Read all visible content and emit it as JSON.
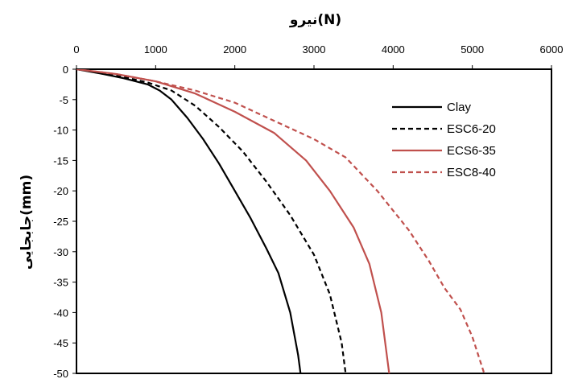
{
  "chart_data": {
    "type": "line",
    "title": "نیرو(N)",
    "xlabel": "",
    "ylabel": "جابجایی(mm)",
    "xlim": [
      0,
      6000
    ],
    "ylim": [
      -50,
      0
    ],
    "x_axis_position": "top",
    "grid": false,
    "legend_position": "right",
    "x_ticks": [
      "0",
      "1000",
      "2000",
      "3000",
      "4000",
      "5000",
      "6000"
    ],
    "y_ticks": [
      "0",
      "-5",
      "-10",
      "-15",
      "-20",
      "-25",
      "-30",
      "-35",
      "-40",
      "-45",
      "-50"
    ],
    "series": [
      {
        "name": "Clay",
        "color": "#000000",
        "dash": "solid",
        "points": [
          [
            0,
            0
          ],
          [
            300,
            -0.7
          ],
          [
            600,
            -1.5
          ],
          [
            900,
            -2.5
          ],
          [
            1050,
            -3.5
          ],
          [
            1200,
            -5
          ],
          [
            1400,
            -8
          ],
          [
            1600,
            -11.5
          ],
          [
            1800,
            -15.5
          ],
          [
            2000,
            -20
          ],
          [
            2200,
            -24.5
          ],
          [
            2400,
            -29.5
          ],
          [
            2550,
            -33.5
          ],
          [
            2700,
            -40
          ],
          [
            2800,
            -47
          ],
          [
            2830,
            -50
          ]
        ]
      },
      {
        "name": "ESC6-20",
        "color": "#000000",
        "dash": "dashed",
        "points": [
          [
            0,
            0
          ],
          [
            500,
            -1
          ],
          [
            900,
            -2.2
          ],
          [
            1200,
            -3.5
          ],
          [
            1500,
            -6
          ],
          [
            1800,
            -9.5
          ],
          [
            2100,
            -13.5
          ],
          [
            2400,
            -18.5
          ],
          [
            2700,
            -24
          ],
          [
            3000,
            -30.5
          ],
          [
            3200,
            -37
          ],
          [
            3350,
            -45
          ],
          [
            3400,
            -50
          ]
        ]
      },
      {
        "name": "ECS6-35",
        "color": "#c0504d",
        "dash": "solid",
        "points": [
          [
            0,
            0
          ],
          [
            500,
            -0.8
          ],
          [
            1000,
            -2
          ],
          [
            1500,
            -4
          ],
          [
            2000,
            -7
          ],
          [
            2500,
            -10.5
          ],
          [
            2900,
            -15
          ],
          [
            3200,
            -20
          ],
          [
            3500,
            -26
          ],
          [
            3700,
            -32
          ],
          [
            3850,
            -40
          ],
          [
            3950,
            -50
          ]
        ]
      },
      {
        "name": "ESC8-40",
        "color": "#c0504d",
        "dash": "dashed",
        "points": [
          [
            0,
            0
          ],
          [
            500,
            -0.8
          ],
          [
            1000,
            -2
          ],
          [
            1500,
            -3.5
          ],
          [
            2000,
            -5.5
          ],
          [
            2500,
            -8.5
          ],
          [
            3000,
            -11.5
          ],
          [
            3400,
            -14.5
          ],
          [
            3800,
            -20
          ],
          [
            4200,
            -26.5
          ],
          [
            4450,
            -31.5
          ],
          [
            4650,
            -36
          ],
          [
            4850,
            -39.5
          ],
          [
            5000,
            -44
          ],
          [
            5150,
            -50
          ]
        ]
      }
    ]
  }
}
